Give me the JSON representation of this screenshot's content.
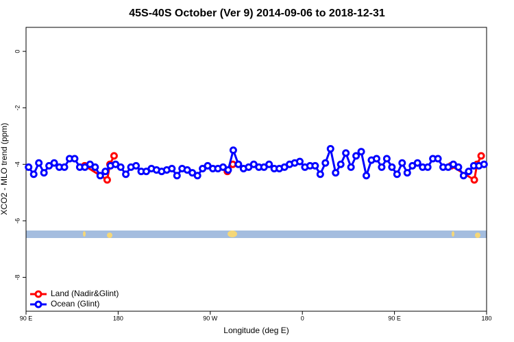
{
  "chart_data": {
    "type": "line",
    "title": "45S-40S October (Ver 9)   2014-09-06 to 2018-12-31",
    "xlabel": "Longitude (deg E)",
    "ylabel": "XCO2 - MLO trend (ppm)",
    "xlim": [
      90,
      540
    ],
    "xticks": [
      {
        "value": 90,
        "label": "90 E"
      },
      180,
      {
        "value": 270,
        "label": "90 W"
      },
      {
        "value": 360,
        "label": "0"
      },
      {
        "value": 450,
        "label": "90 E"
      },
      {
        "value": 540,
        "label": "180"
      }
    ],
    "ylim": [
      -9.2,
      0.85
    ],
    "yticks": [
      -8,
      -6,
      -4,
      -2,
      0
    ],
    "legend": "bottomleft",
    "series": [
      {
        "name": "Land (Nadir&Glint)",
        "color": "#ff0000",
        "x": [
          147.3,
          169.3,
          172,
          176,
          null,
          286.7,
          292,
          null,
          505.3,
          528,
          530.7,
          534.7
        ],
        "values": [
          -4.05,
          -4.55,
          -4.0,
          -3.7,
          null,
          -4.25,
          -4.0,
          null,
          -4.05,
          -4.55,
          -4.0,
          -3.7
        ]
      },
      {
        "name": "Ocean (Glint)",
        "color": "#0000ff",
        "x": [
          92.5,
          97.5,
          102.5,
          107.5,
          112.5,
          117.5,
          122.5,
          127.5,
          132.5,
          137.5,
          142.5,
          147.5,
          152.5,
          157.5,
          162.5,
          167.5,
          172.5,
          177.5,
          182.5,
          187.5,
          192.5,
          197.5,
          202.5,
          207.5,
          212.5,
          217.5,
          222.5,
          227.5,
          232.5,
          237.5,
          242.5,
          247.5,
          252.5,
          257.5,
          262.5,
          267.5,
          272.5,
          277.5,
          282.5,
          287.5,
          292.5,
          297.5,
          302.5,
          307.5,
          312.5,
          317.5,
          322.5,
          327.5,
          332.5,
          337.5,
          342.5,
          347.5,
          352.5,
          357.5,
          362.5,
          367.5,
          372.5,
          377.5,
          382.5,
          387.5,
          392.5,
          397.5,
          402.5,
          407.5,
          412.5,
          417.5,
          422.5,
          427.5,
          432.5,
          437.5,
          442.5,
          447.5,
          452.5,
          457.5,
          462.5,
          467.5,
          472.5,
          477.5,
          482.5,
          487.5,
          492.5,
          497.5,
          502.5,
          507.5,
          512.5,
          517.5,
          522.5,
          527.5,
          532.5,
          537.5
        ],
        "values": [
          -4.1,
          -4.35,
          -3.95,
          -4.3,
          -4.05,
          -3.95,
          -4.1,
          -4.1,
          -3.8,
          -3.8,
          -4.1,
          -4.1,
          -4.0,
          -4.1,
          -4.4,
          -4.25,
          -4.05,
          -4.0,
          -4.1,
          -4.35,
          -4.1,
          -4.05,
          -4.25,
          -4.25,
          -4.15,
          -4.2,
          -4.25,
          -4.2,
          -4.15,
          -4.4,
          -4.15,
          -4.2,
          -4.3,
          -4.4,
          -4.15,
          -4.05,
          -4.15,
          -4.15,
          -4.1,
          -4.2,
          -3.5,
          -4.0,
          -4.15,
          -4.1,
          -4.0,
          -4.1,
          -4.1,
          -4.0,
          -4.15,
          -4.15,
          -4.1,
          -4.0,
          -3.95,
          -3.9,
          -4.1,
          -4.05,
          -4.05,
          -4.35,
          -3.95,
          -3.45,
          -4.3,
          -4.0,
          -3.6,
          -4.1,
          -3.7,
          -3.55,
          -4.4,
          -3.85,
          -3.8,
          -4.1,
          -3.8,
          -4.1,
          -4.35,
          -3.95,
          -4.3,
          -4.05,
          -3.95,
          -4.1,
          -4.1,
          -3.8,
          -3.8,
          -4.1,
          -4.1,
          -4.0,
          -4.1,
          -4.4,
          -4.25,
          -4.05,
          -4.05,
          -4.0
        ]
      }
    ]
  }
}
